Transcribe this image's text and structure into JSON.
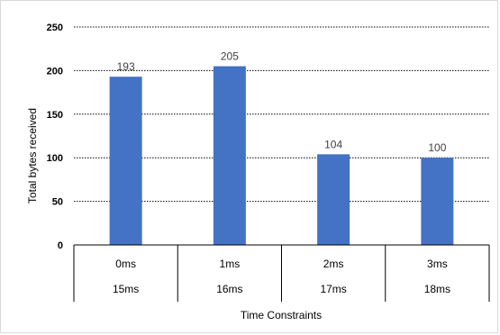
{
  "chart_data": {
    "type": "bar",
    "categories": [
      [
        "0ms",
        "15ms"
      ],
      [
        "1ms",
        "16ms"
      ],
      [
        "2ms",
        "17ms"
      ],
      [
        "3ms",
        "18ms"
      ]
    ],
    "values": [
      193,
      205,
      104,
      100
    ],
    "data_labels": [
      "193",
      "205",
      "104",
      "100"
    ],
    "title": "",
    "xlabel": "Time Constraints",
    "ylabel": "Total bytes received",
    "ylim": [
      0,
      250
    ],
    "yticks": [
      0,
      50,
      100,
      150,
      200,
      250
    ],
    "ytick_labels": [
      "0",
      "50",
      "100",
      "150",
      "200",
      "250"
    ],
    "grid": true,
    "grid_style": "dotted",
    "legend": "none",
    "bar_color": "#4472c4",
    "grid_color": "#000000"
  }
}
